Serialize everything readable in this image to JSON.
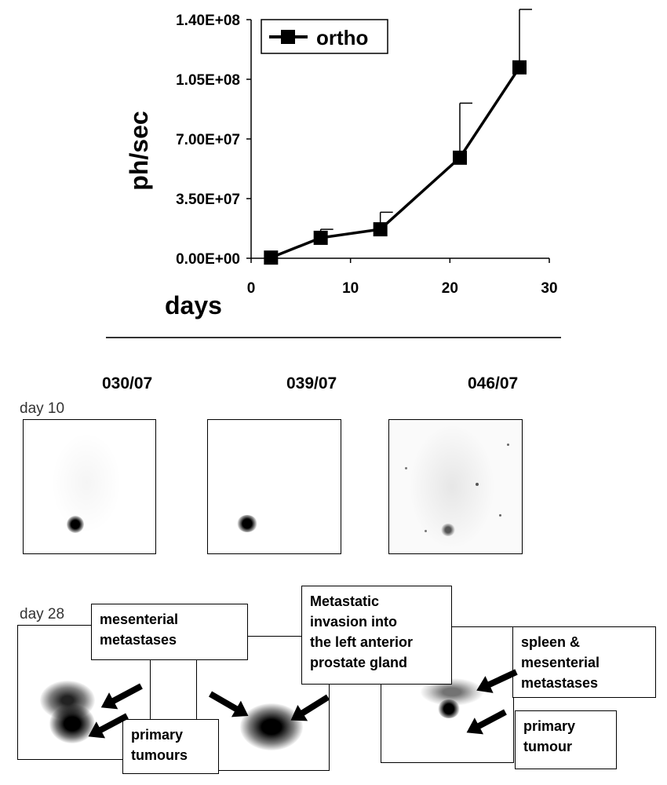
{
  "chart_data": {
    "type": "line",
    "title": "",
    "xlabel": "days",
    "ylabel": "ph/sec",
    "xlim": [
      0,
      30
    ],
    "ylim": [
      0,
      140000000
    ],
    "xticks": [
      "0",
      "10",
      "20",
      "30"
    ],
    "yticks": [
      "0.00E+00",
      "3.50E+07",
      "7.00E+07",
      "1.05E+08",
      "1.40E+08"
    ],
    "legend_position": "top-left",
    "grid": false,
    "series": [
      {
        "name": "ortho",
        "x": [
          2,
          7,
          13,
          21,
          27
        ],
        "y": [
          400000,
          12000000,
          17000000,
          59000000,
          112000000
        ],
        "error_upper": [
          0,
          5000000,
          10000000,
          32000000,
          34000000
        ]
      }
    ]
  },
  "panels": {
    "labels": [
      "030/07",
      "039/07",
      "046/07"
    ],
    "day10": "day 10",
    "day28": "day 28"
  },
  "callouts": {
    "mesenterial": "mesenterial\nmetastases",
    "primary_tumours": "primary\ntumours",
    "metastatic": "Metastatic\ninvasion into\nthe left anterior\nprostate gland",
    "spleen": "spleen  &\nmesenterial\nmetastases",
    "primary_tumour": "primary\ntumour"
  }
}
